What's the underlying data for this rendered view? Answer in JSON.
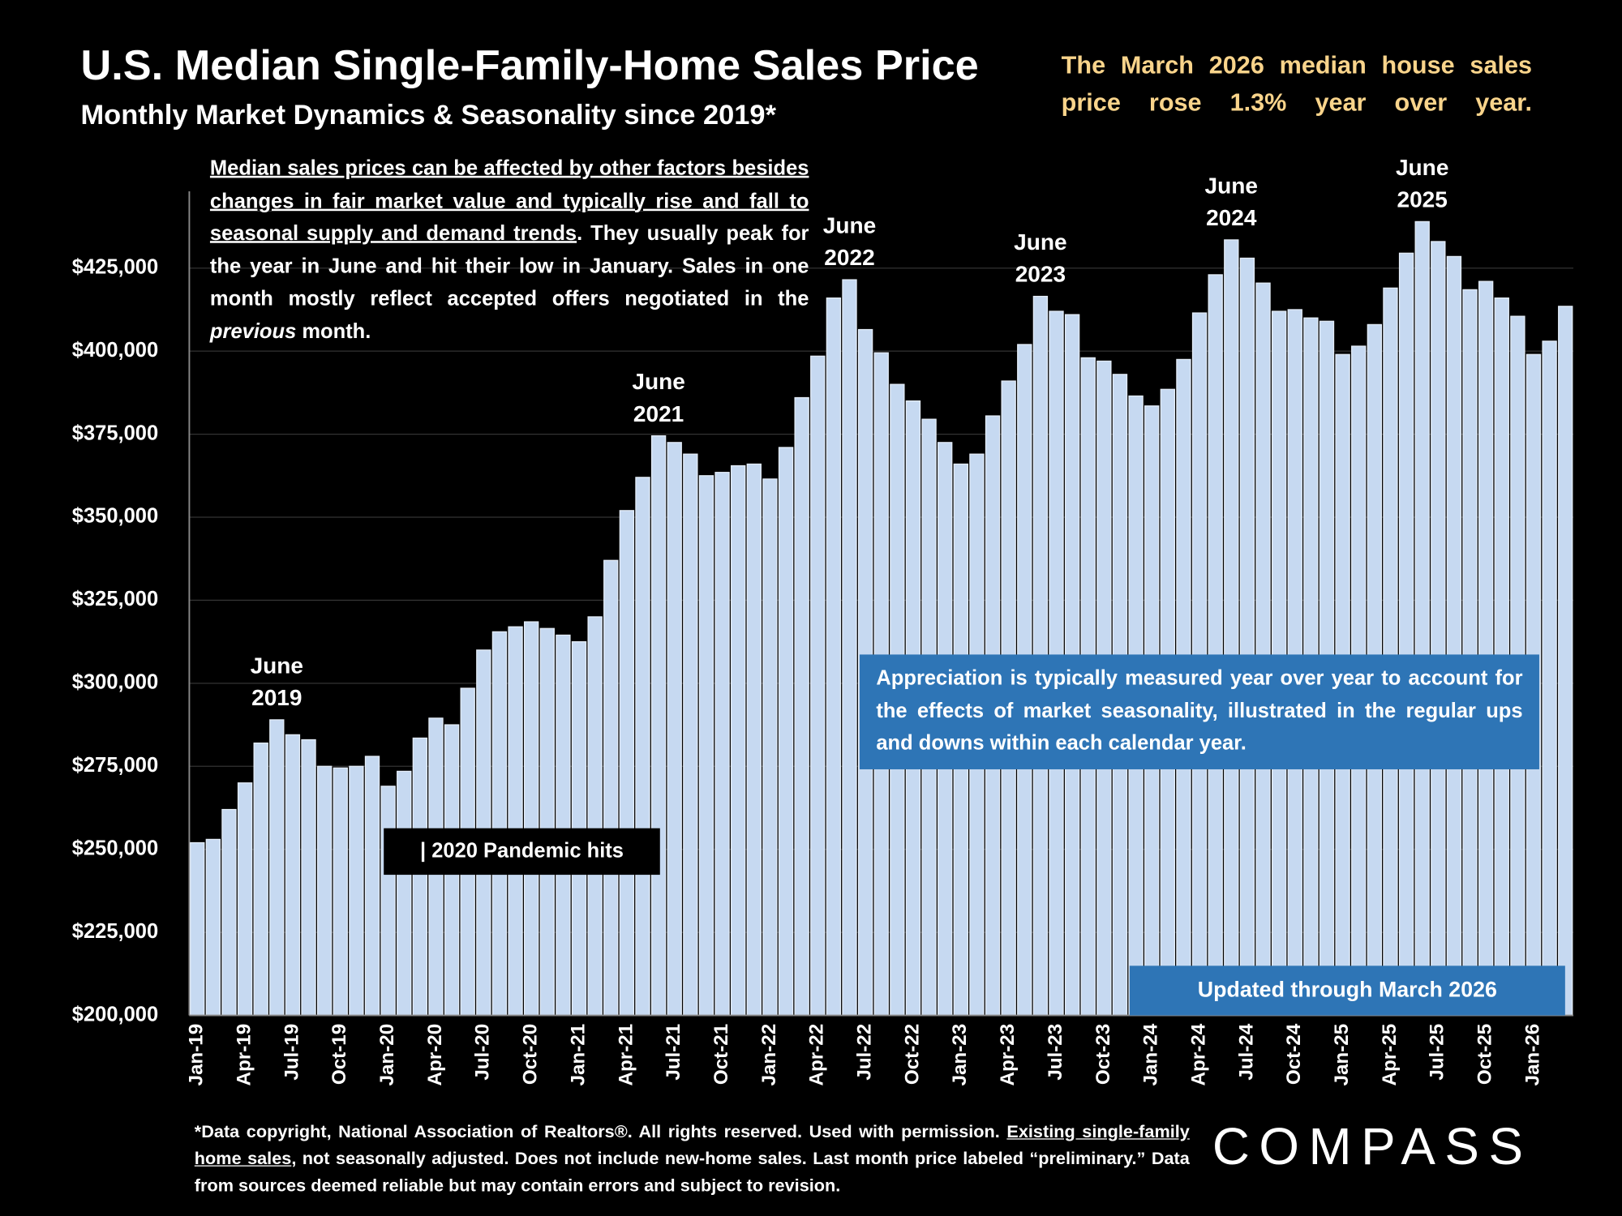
{
  "chart_data": {
    "type": "bar",
    "title": "U.S. Median Single-Family-Home Sales Price",
    "subtitle": "Monthly Market Dynamics & Seasonality since 2019*",
    "categories": [
      "Jan-19",
      null,
      null,
      "Apr-19",
      null,
      null,
      "Jul-19",
      null,
      null,
      "Oct-19",
      null,
      null,
      "Jan-20",
      null,
      null,
      "Apr-20",
      null,
      null,
      "Jul-20",
      null,
      null,
      "Oct-20",
      null,
      null,
      "Jan-21",
      null,
      null,
      "Apr-21",
      null,
      null,
      "Jul-21",
      null,
      null,
      "Oct-21",
      null,
      null,
      "Jan-22",
      null,
      null,
      "Apr-22",
      null,
      null,
      "Jul-22",
      null,
      null,
      "Oct-22",
      null,
      null,
      "Jan-23",
      null,
      null,
      "Apr-23",
      null,
      null,
      "Jul-23",
      null,
      null,
      "Oct-23",
      null,
      null,
      "Jan-24",
      null,
      null,
      "Apr-24",
      null,
      null,
      "Jul-24",
      null,
      null,
      "Oct-24",
      null,
      null,
      "Jan-25",
      null,
      null,
      "Apr-25",
      null,
      null,
      "Jul-25",
      null,
      null,
      "Oct-25",
      null,
      null,
      "Jan-26",
      null,
      null
    ],
    "values": [
      252000,
      253000,
      262000,
      270000,
      282000,
      289000,
      284500,
      283000,
      275000,
      274500,
      275000,
      278000,
      269000,
      273500,
      283500,
      289500,
      287500,
      298500,
      310000,
      315500,
      317000,
      318500,
      316500,
      314500,
      312500,
      320000,
      337000,
      352000,
      362000,
      374500,
      372500,
      369000,
      362500,
      363500,
      365500,
      366000,
      361500,
      371000,
      386000,
      398500,
      416000,
      421500,
      406500,
      399500,
      390000,
      385000,
      379500,
      372500,
      366000,
      369000,
      380500,
      391000,
      402000,
      416500,
      412000,
      411000,
      398000,
      397000,
      393000,
      386500,
      383500,
      388500,
      397500,
      411500,
      423000,
      433500,
      428000,
      420500,
      412000,
      412500,
      410000,
      409000,
      399000,
      401500,
      408000,
      419000,
      429500,
      439000,
      433000,
      428500,
      418500,
      421000,
      416000,
      410500,
      399000,
      403000,
      413500
    ],
    "color": "#c6d9f1",
    "ylim": [
      200000,
      450000
    ],
    "yticks": [
      {
        "value": 200000,
        "label": "$200,000"
      },
      {
        "value": 225000,
        "label": "$225,000"
      },
      {
        "value": 250000,
        "label": "$250,000"
      },
      {
        "value": 275000,
        "label": "$275,000"
      },
      {
        "value": 300000,
        "label": "$300,000"
      },
      {
        "value": 325000,
        "label": "$325,000"
      },
      {
        "value": 350000,
        "label": "$350,000"
      },
      {
        "value": 375000,
        "label": "$375,000"
      },
      {
        "value": 400000,
        "label": "$400,000"
      },
      {
        "value": 425000,
        "label": "$425,000"
      }
    ],
    "grid": true,
    "annotations": [
      {
        "lines": [
          "June",
          "2019"
        ]
      },
      {
        "lines": [
          "June",
          "2021"
        ]
      },
      {
        "lines": [
          "June",
          "2022"
        ]
      },
      {
        "lines": [
          "June",
          "2023"
        ]
      },
      {
        "lines": [
          "June",
          "2024"
        ]
      },
      {
        "lines": [
          "June",
          "2025"
        ]
      }
    ]
  },
  "headline": "The March 2026 median house sales price rose 1.3% year over year.",
  "note": {
    "underlined": "Median sales prices can be affected by other factors besides changes in fair market value and typically rise and fall to seasonal supply and demand trends",
    "text": ". They usually peak for the year in June and hit their low in January. Sales in one month mostly reflect accepted offers negotiated in the ",
    "italic": "previous",
    "end": " month."
  },
  "callout": "Appreciation is typically measured year over year to account for the effects of market seasonality, illustrated in the regular ups and downs within each calendar year.",
  "pandemic": "| 2020 Pandemic hits",
  "updated": "Updated through March 2026",
  "footnote": {
    "start": "*Data copyright, National Association of Realtors®. All rights reserved. Used with permission. ",
    "link": "Existing single-family home sales",
    "end": ", not seasonally adjusted. Does not include new-home sales. Last month price labeled “preliminary.” Data from sources deemed reliable but may contain errors and subject to revision."
  },
  "logo": "COMPASS"
}
